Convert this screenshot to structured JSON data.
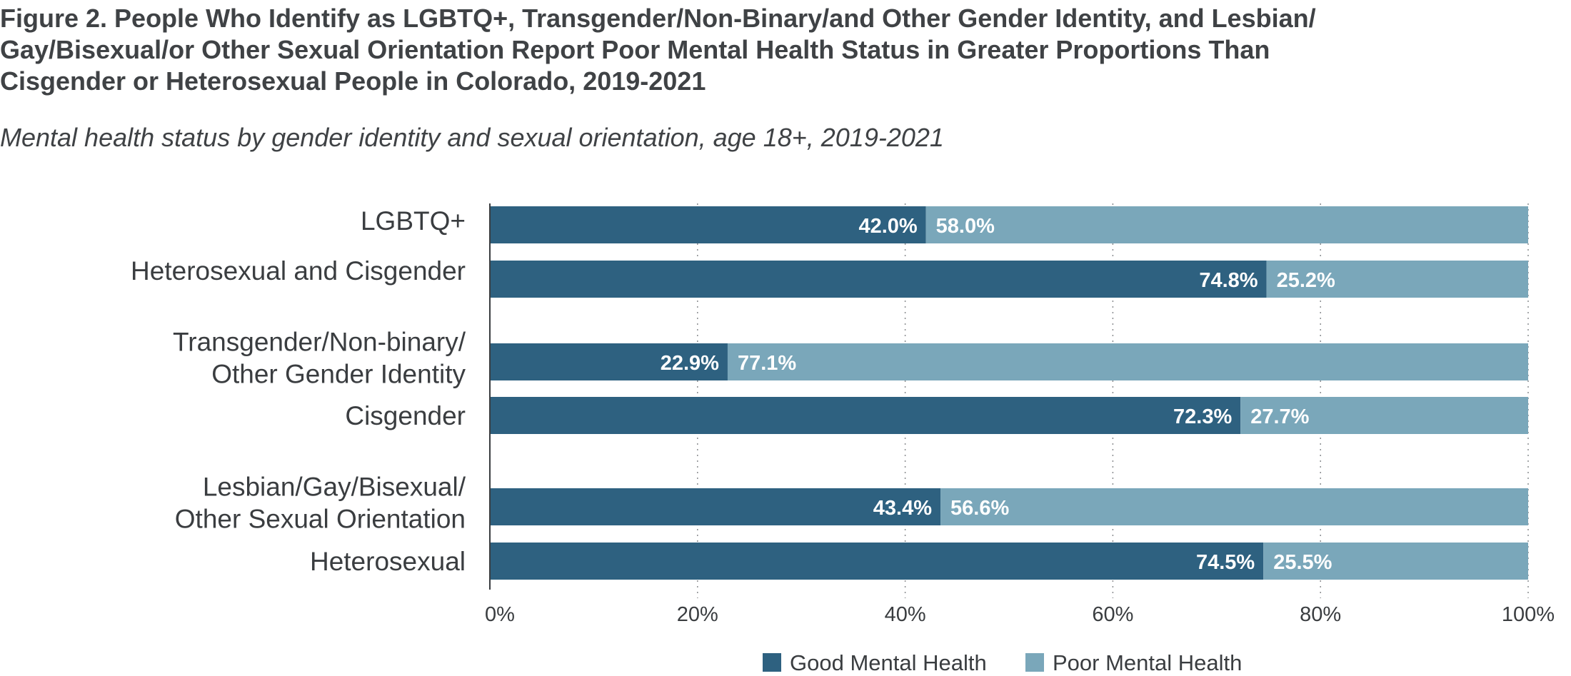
{
  "header": {
    "title_lines": [
      "Figure 2. People Who Identify as LGBTQ+, Transgender/Non-Binary/and Other Gender Identity, and Lesbian/",
      "Gay/Bisexual/or Other Sexual Orientation Report Poor Mental Health Status in Greater Proportions Than",
      "Cisgender or Heterosexual People in Colorado, 2019-2021"
    ],
    "subtitle": "Mental health status by gender identity and sexual orientation, age 18+, 2019-2021"
  },
  "chart_data": {
    "type": "bar",
    "orientation": "horizontal",
    "stacked": true,
    "title": "Figure 2. People Who Identify as LGBTQ+, Transgender/Non-Binary/and Other Gender Identity, and Lesbian/Gay/Bisexual/or Other Sexual Orientation Report Poor Mental Health Status in Greater Proportions Than Cisgender or Heterosexual People in Colorado, 2019-2021",
    "subtitle": "Mental health status by gender identity and sexual orientation, age 18+, 2019-2021",
    "categories": [
      [
        "LGBTQ+"
      ],
      [
        "Heterosexual and Cisgender"
      ],
      [
        "Transgender/Non-binary/",
        "Other Gender Identity"
      ],
      [
        "Cisgender"
      ],
      [
        "Lesbian/Gay/Bisexual/",
        "Other Sexual Orientation"
      ],
      [
        "Heterosexual"
      ]
    ],
    "series": [
      {
        "name": "Good Mental Health",
        "color": "#2e6180",
        "values": [
          42.0,
          74.8,
          22.9,
          72.3,
          43.4,
          74.5
        ],
        "labels": [
          "42.0%",
          "74.8%",
          "22.9%",
          "72.3%",
          "43.4%",
          "74.5%"
        ]
      },
      {
        "name": "Poor Mental Health",
        "color": "#7aa7ba",
        "values": [
          58.0,
          25.2,
          77.1,
          27.7,
          56.6,
          25.5
        ],
        "labels": [
          "58.0%",
          "25.2%",
          "77.1%",
          "27.7%",
          "56.6%",
          "25.5%"
        ]
      }
    ],
    "xlim": [
      0,
      100
    ],
    "xticks": [
      "0%",
      "20%",
      "40%",
      "60%",
      "80%",
      "100%"
    ],
    "xlabel": "",
    "ylabel": "",
    "grid": "vertical dotted",
    "legend": "bottom"
  }
}
